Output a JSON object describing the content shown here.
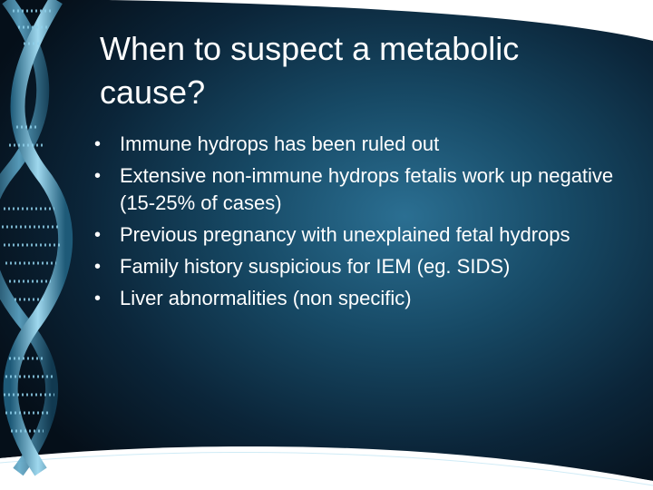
{
  "slide": {
    "title": "When to suspect a metabolic cause?",
    "bullet_marker": "•",
    "bullets": [
      "Immune hydrops has been ruled out",
      "Extensive non-immune hydrops fetalis work up negative (15-25% of cases)",
      "Previous pregnancy with unexplained fetal hydrops",
      "Family history suspicious for IEM (eg. SIDS)",
      "Liver abnormalities (non specific)"
    ]
  },
  "theme": {
    "background_dark": "#06121e",
    "background_mid": "#14405a",
    "glow": "#2b6f92",
    "helix_color": "#7fc6e4",
    "text_color": "#ffffff"
  }
}
